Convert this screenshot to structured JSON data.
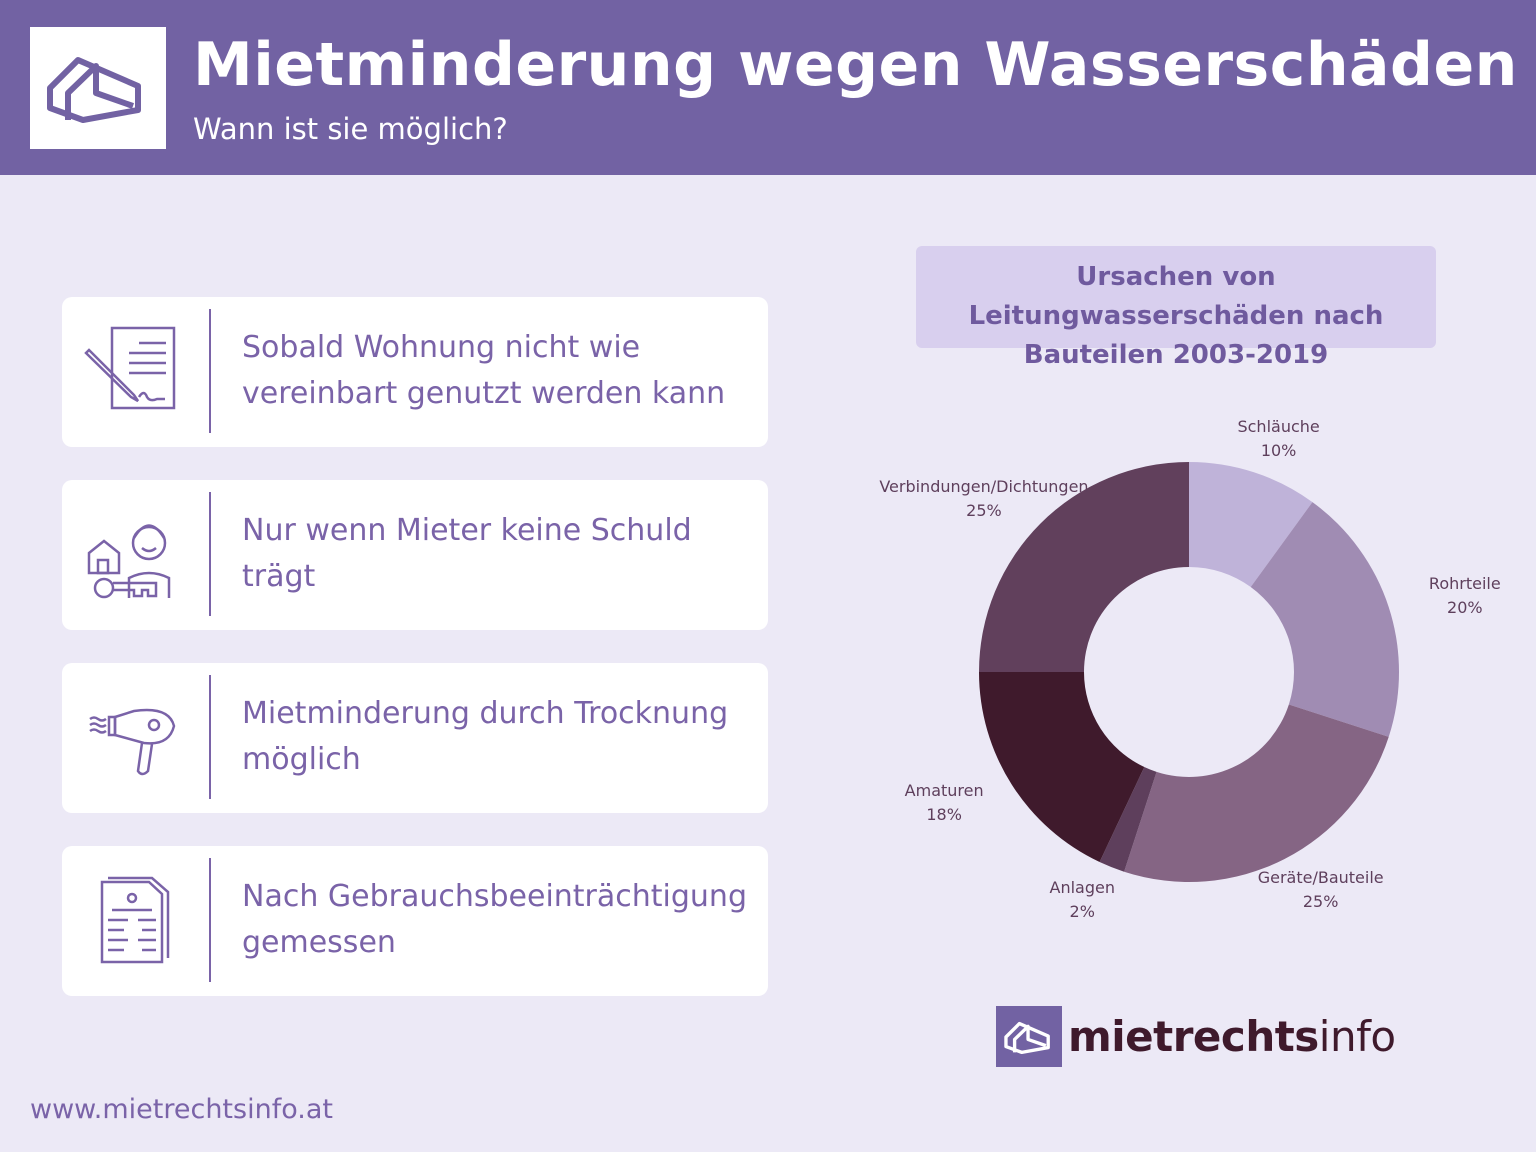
{
  "header": {
    "title": "Mietminderung wegen Wasserschäden",
    "subtitle": "Wann ist sie möglich?"
  },
  "cards": [
    {
      "icon": "contract-sign-icon",
      "text": "Sobald Wohnung nicht wie vereinbart genutzt werden kann"
    },
    {
      "icon": "tenant-key-icon",
      "text": "Nur wenn Mieter keine Schuld trägt"
    },
    {
      "icon": "hair-dryer-icon",
      "text": "Mietminderung durch Trocknung möglich"
    },
    {
      "icon": "document-icon",
      "text": "Nach Gebrauchsbeeinträchtigung gemessen"
    }
  ],
  "chart_data": {
    "type": "pie",
    "donut": true,
    "title": "Ursachen von Leitungwasserschäden nach Bauteilen 2003-2019",
    "categories": [
      "Schläuche",
      "Rohrteile",
      "Geräte/Bauteile",
      "Anlagen",
      "Amaturen",
      "Verbindungen/Dichtungen"
    ],
    "values": [
      10,
      20,
      25,
      2,
      18,
      25
    ],
    "value_labels": [
      "10%",
      "20%",
      "25%",
      "2%",
      "18%",
      "25%"
    ],
    "colors": [
      "#bfb3d9",
      "#a08cb3",
      "#856584",
      "#5e3f5c",
      "#3f1a2c",
      "#61405c"
    ],
    "start": "top",
    "direction": "clockwise"
  },
  "footer": {
    "url": "www.mietrechtsinfo.at",
    "brand_bold": "mietrechts",
    "brand_light": "info"
  }
}
